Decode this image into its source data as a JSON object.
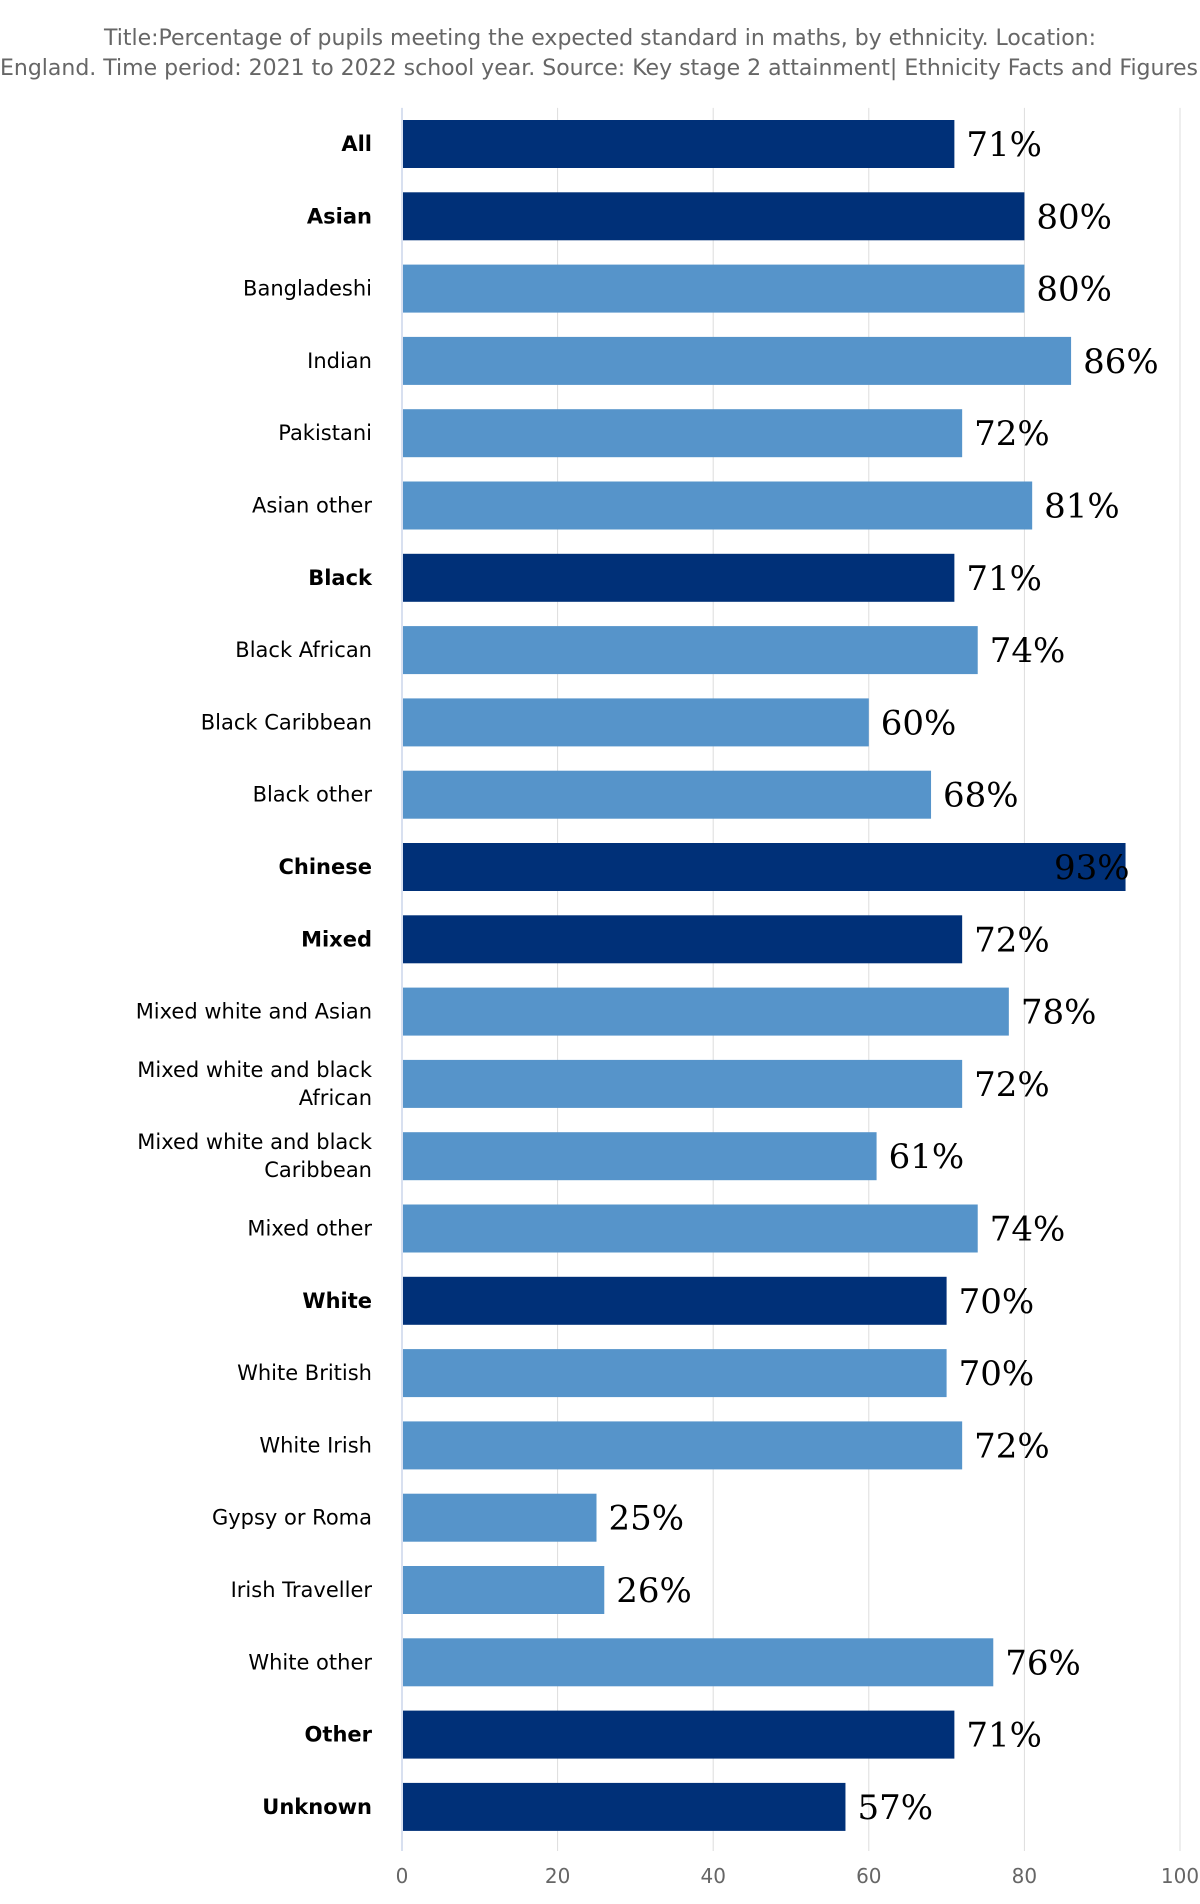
{
  "title_lines": [
    "Title:Percentage of pupils meeting the expected standard in maths, by ethnicity. Location:",
    "England. Time period: 2021 to 2022 school year. Source: Key stage 2 attainment| Ethnicity Facts and Figures GOV.UK"
  ],
  "colors": {
    "aggregate": "#003078",
    "subgroup": "#5694ca",
    "grid": "#dddddd",
    "axis": "#ccd6eb"
  },
  "chart_data": {
    "type": "bar",
    "orientation": "horizontal",
    "xlim": [
      0,
      100
    ],
    "x_ticks": [
      "0",
      "20",
      "40",
      "60",
      "80",
      "100"
    ],
    "x_tick_values": [
      0,
      20,
      40,
      60,
      80,
      100
    ],
    "grid": true,
    "legend": "none",
    "categories": [
      "All",
      "Asian",
      "Bangladeshi",
      "Indian",
      "Pakistani",
      "Asian other",
      "Black",
      "Black African",
      "Black Caribbean",
      "Black other",
      "Chinese",
      "Mixed",
      "Mixed white and Asian",
      "Mixed white and black African",
      "Mixed white and black Caribbean",
      "Mixed other",
      "White",
      "White British",
      "White Irish",
      "Gypsy or Roma",
      "Irish Traveller",
      "White other",
      "Other",
      "Unknown"
    ],
    "category_label_lines": [
      [
        "All"
      ],
      [
        "Asian"
      ],
      [
        "Bangladeshi"
      ],
      [
        "Indian"
      ],
      [
        "Pakistani"
      ],
      [
        "Asian other"
      ],
      [
        "Black"
      ],
      [
        "Black African"
      ],
      [
        "Black Caribbean"
      ],
      [
        "Black other"
      ],
      [
        "Chinese"
      ],
      [
        "Mixed"
      ],
      [
        "Mixed white and Asian"
      ],
      [
        "Mixed white and black",
        "African"
      ],
      [
        "Mixed white and black",
        "Caribbean"
      ],
      [
        "Mixed other"
      ],
      [
        "White"
      ],
      [
        "White British"
      ],
      [
        "White Irish"
      ],
      [
        "Gypsy or Roma"
      ],
      [
        "Irish Traveller"
      ],
      [
        "White other"
      ],
      [
        "Other"
      ],
      [
        "Unknown"
      ]
    ],
    "values": [
      71,
      80,
      80,
      86,
      72,
      81,
      71,
      74,
      60,
      68,
      93,
      72,
      78,
      72,
      61,
      74,
      70,
      70,
      72,
      25,
      26,
      76,
      71,
      57
    ],
    "data_labels": [
      "71%",
      "80%",
      "80%",
      "86%",
      "72%",
      "81%",
      "71%",
      "74%",
      "60%",
      "68%",
      "93%",
      "72%",
      "78%",
      "72%",
      "61%",
      "74%",
      "70%",
      "70%",
      "72%",
      "25%",
      "26%",
      "76%",
      "71%",
      "57%"
    ],
    "is_aggregate": [
      true,
      true,
      false,
      false,
      false,
      false,
      true,
      false,
      false,
      false,
      true,
      true,
      false,
      false,
      false,
      false,
      true,
      false,
      false,
      false,
      false,
      false,
      true,
      true
    ]
  }
}
